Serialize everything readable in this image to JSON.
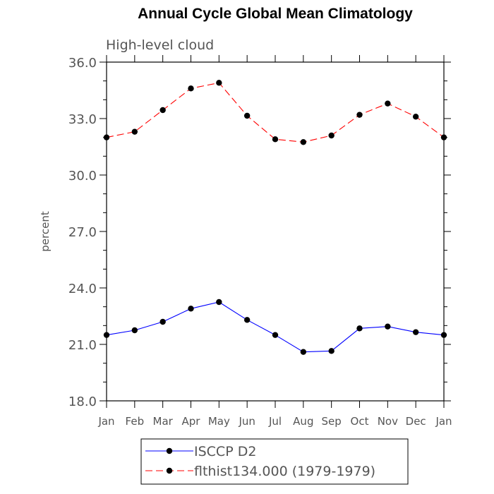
{
  "chart_data": {
    "type": "line",
    "title": "Annual Cycle Global Mean Climatology",
    "subtitle": "High-level cloud",
    "xlabel": "",
    "ylabel": "percent",
    "categories": [
      "Jan",
      "Feb",
      "Mar",
      "Apr",
      "May",
      "Jun",
      "Jul",
      "Aug",
      "Sep",
      "Oct",
      "Nov",
      "Dec",
      "Jan"
    ],
    "ylim": [
      18.0,
      36.0
    ],
    "yticks": [
      "18.0",
      "21.0",
      "24.0",
      "27.0",
      "30.0",
      "33.0",
      "36.0"
    ],
    "grid": false,
    "legend_position": "bottom-center",
    "series": [
      {
        "name": "ISCCP D2",
        "color": "#0000ff",
        "line_style": "solid",
        "marker": "filled-circle",
        "values": [
          21.5,
          21.75,
          22.2,
          22.9,
          23.25,
          22.3,
          21.5,
          20.6,
          20.65,
          21.85,
          21.95,
          21.65,
          21.5
        ]
      },
      {
        "name": "flthist134.000 (1979-1979)",
        "color": "#ff0000",
        "line_style": "dashed",
        "marker": "filled-circle",
        "values": [
          32.0,
          32.3,
          33.45,
          34.6,
          34.9,
          33.15,
          31.9,
          31.75,
          32.1,
          33.2,
          33.8,
          33.1,
          32.0
        ]
      }
    ]
  }
}
